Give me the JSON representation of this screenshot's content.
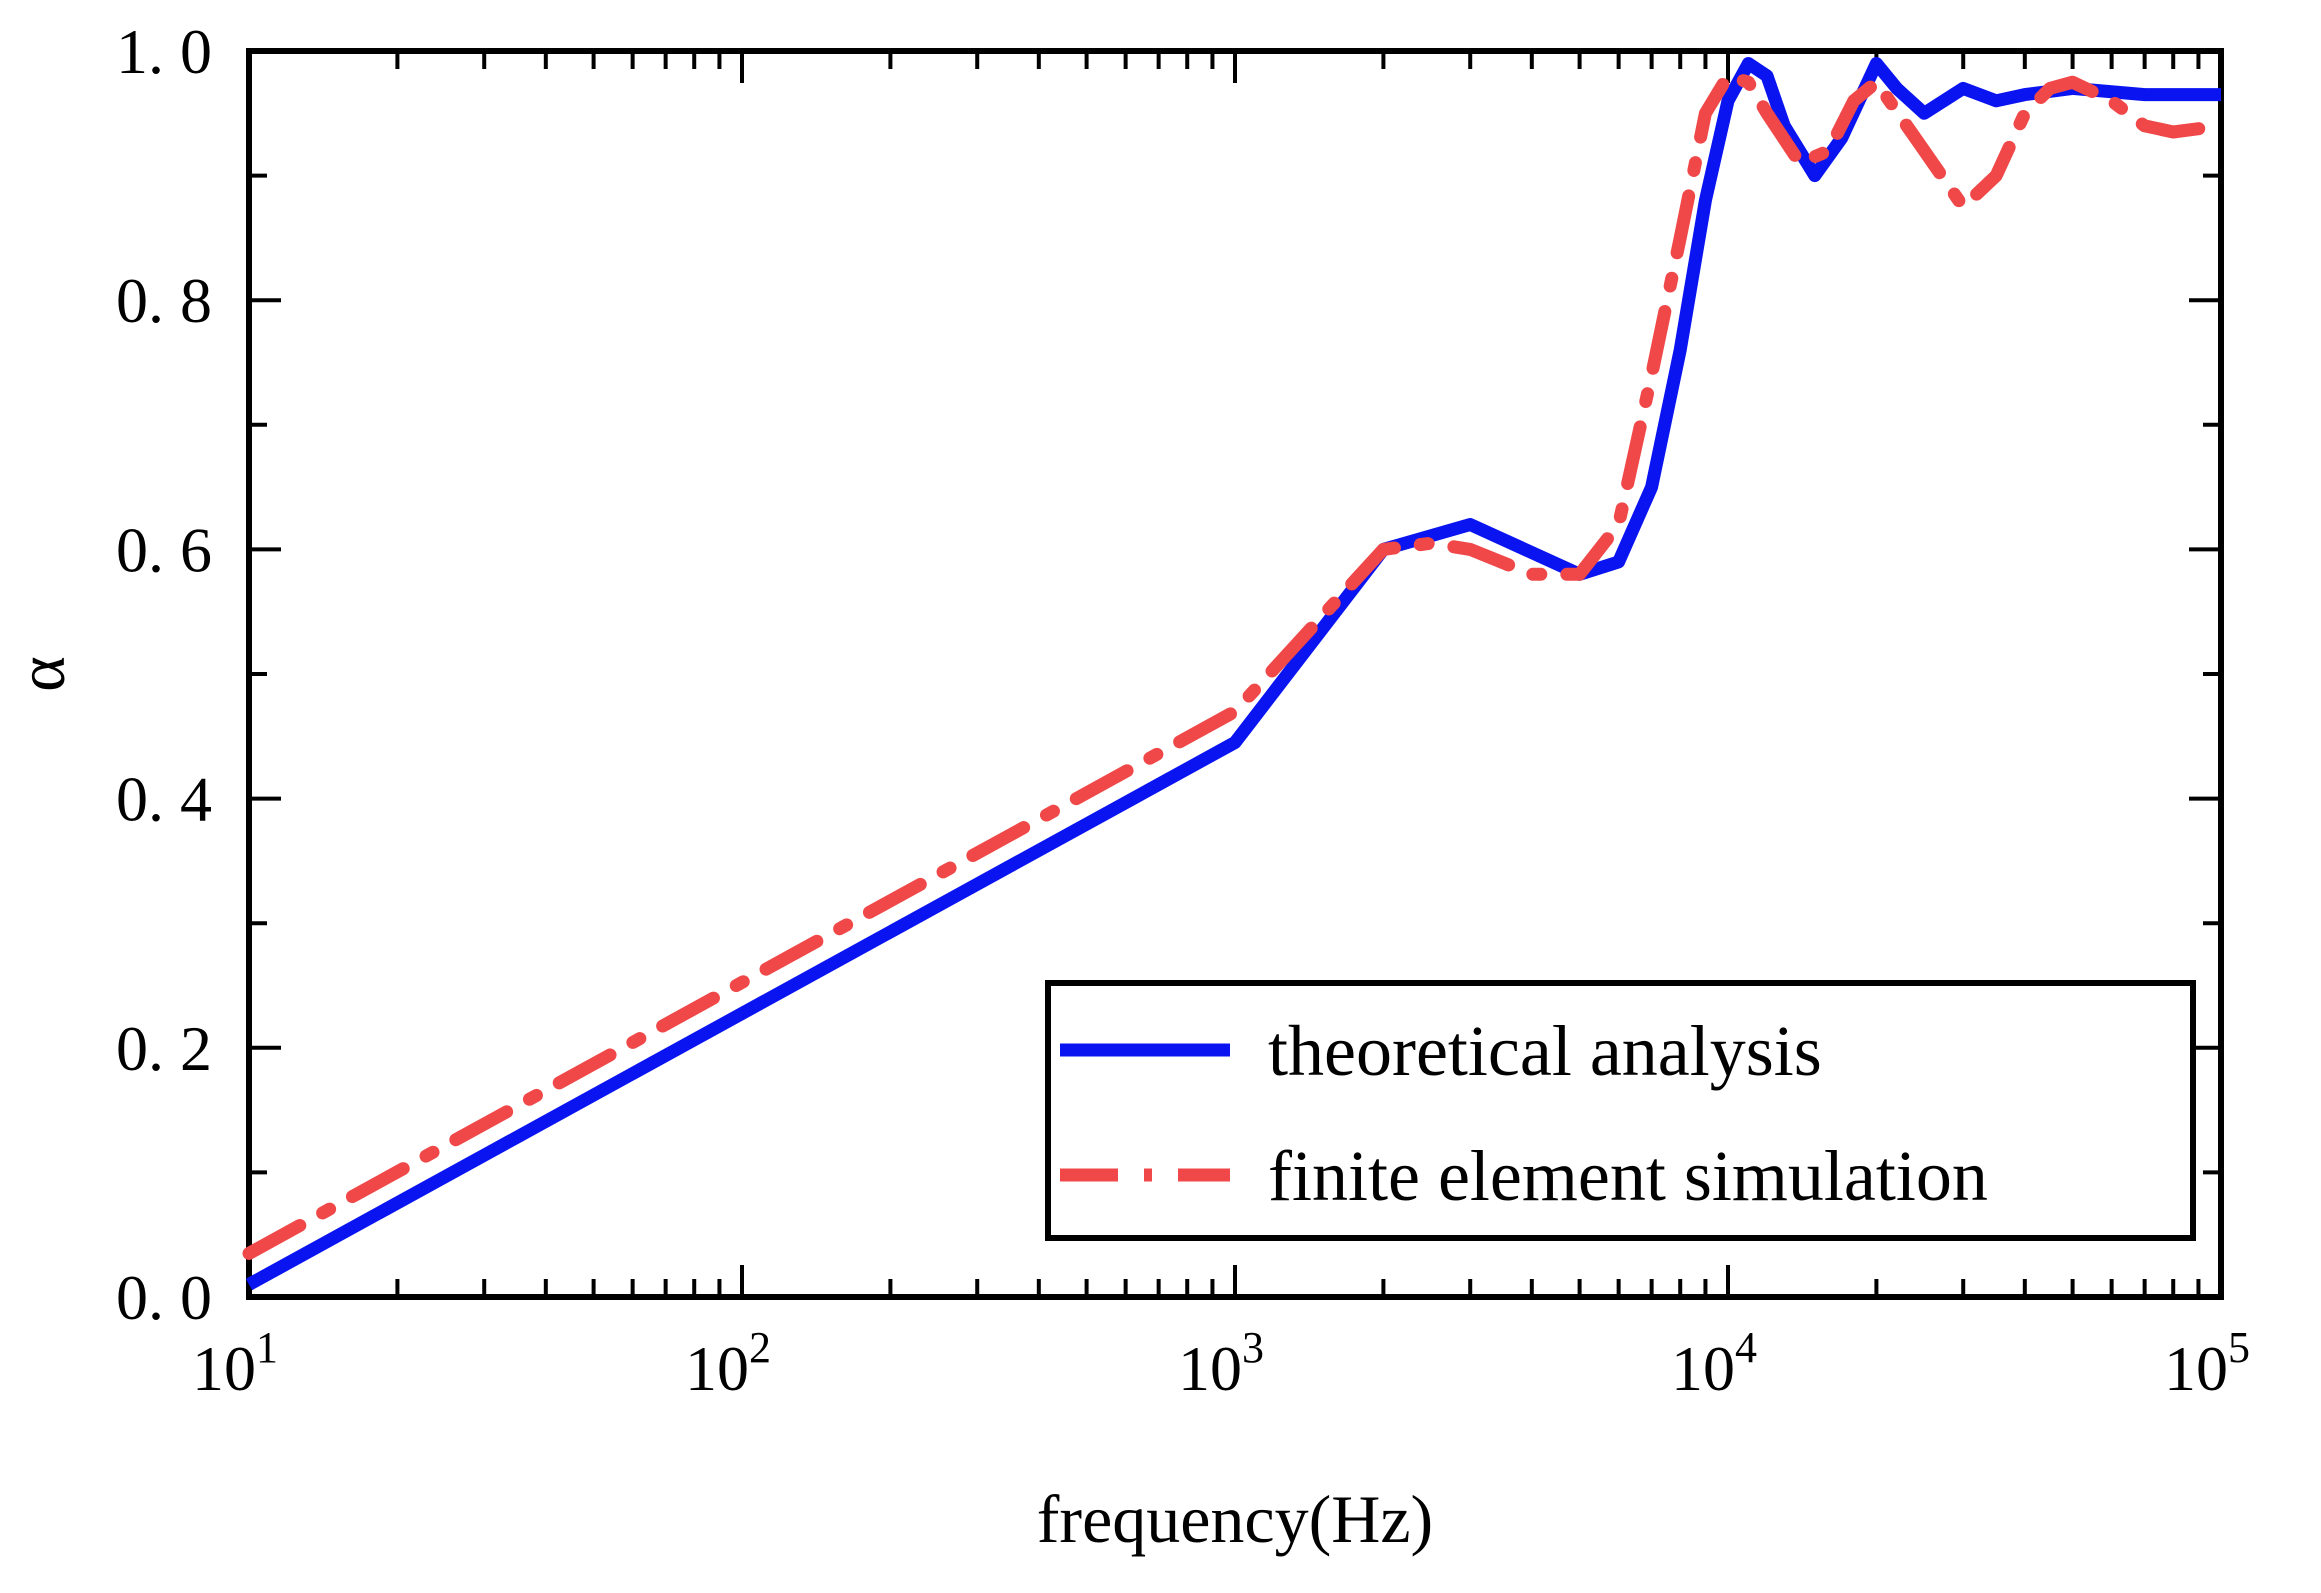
{
  "chart_data": {
    "type": "line",
    "title": "",
    "xlabel": "frequency(Hz)",
    "ylabel": "α",
    "xscale": "log",
    "xlim": [
      10,
      100000
    ],
    "ylim": [
      0.0,
      1.0
    ],
    "grid": false,
    "legend_position": "bottom-right",
    "x_tick_labels": [
      {
        "value": 10,
        "base": "10",
        "exp": "1"
      },
      {
        "value": 100,
        "base": "10",
        "exp": "2"
      },
      {
        "value": 1000,
        "base": "10",
        "exp": "3"
      },
      {
        "value": 10000,
        "base": "10",
        "exp": "4"
      },
      {
        "value": 100000,
        "base": "10",
        "exp": "5"
      }
    ],
    "y_ticks": [
      0.0,
      0.2,
      0.4,
      0.6,
      0.8,
      1.0
    ],
    "y_tick_labels": [
      "0. 0",
      "0. 2",
      "0. 4",
      "0. 6",
      "0. 8",
      "1. 0"
    ],
    "series": [
      {
        "name": "theoretical analysis",
        "color": "#0a14f0",
        "style": "solid",
        "x": [
          10,
          1000,
          2000,
          3000,
          5000,
          6000,
          7000,
          8000,
          9000,
          10000,
          11000,
          12000,
          13000,
          15000,
          17000,
          20000,
          22000,
          25000,
          30000,
          35000,
          40000,
          50000,
          70000,
          100000
        ],
        "y": [
          0.01,
          0.445,
          0.6,
          0.62,
          0.58,
          0.59,
          0.65,
          0.76,
          0.88,
          0.96,
          0.99,
          0.98,
          0.94,
          0.9,
          0.93,
          0.99,
          0.97,
          0.95,
          0.97,
          0.96,
          0.965,
          0.97,
          0.965,
          0.965
        ]
      },
      {
        "name": "finite element simulation",
        "color": "#f04848",
        "style": "dashdot",
        "x": [
          10,
          1000,
          2000,
          2500,
          3000,
          4000,
          5000,
          6000,
          7000,
          8000,
          9000,
          10000,
          11000,
          12000,
          14000,
          16000,
          18000,
          20000,
          25000,
          30000,
          35000,
          40000,
          45000,
          50000,
          60000,
          70000,
          80000,
          100000
        ],
        "y": [
          0.035,
          0.47,
          0.6,
          0.605,
          0.6,
          0.58,
          0.58,
          0.62,
          0.74,
          0.85,
          0.95,
          0.98,
          0.975,
          0.95,
          0.91,
          0.92,
          0.96,
          0.975,
          0.92,
          0.875,
          0.9,
          0.95,
          0.97,
          0.975,
          0.96,
          0.94,
          0.935,
          0.94
        ]
      }
    ]
  }
}
